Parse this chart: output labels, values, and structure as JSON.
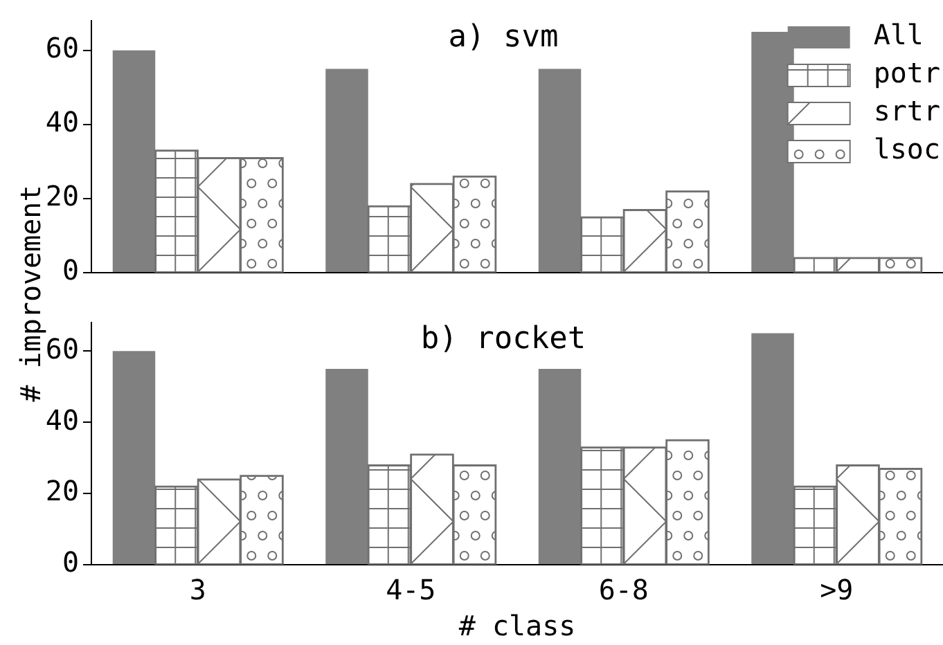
{
  "chart_data": [
    {
      "type": "bar",
      "title": "a) svm",
      "ylabel": "# improvement",
      "categories": [
        null,
        null,
        null,
        null
      ],
      "ylim": [
        0,
        68
      ],
      "yticks": [
        0,
        20,
        40,
        60
      ],
      "grid": false,
      "legend": "top right",
      "series": [
        {
          "name": "All",
          "color": "#808080",
          "values": [
            60,
            55,
            55,
            65
          ]
        },
        {
          "name": "potr",
          "color": "#ffffff",
          "values": [
            33,
            18,
            15,
            4
          ]
        },
        {
          "name": "srtr",
          "color": "#ffffff",
          "values": [
            31,
            24,
            17,
            4
          ]
        },
        {
          "name": "lsoc",
          "color": "#ffffff",
          "values": [
            31,
            26,
            22,
            4
          ]
        }
      ]
    },
    {
      "type": "bar",
      "title": "b) rocket",
      "xlabel": "# class",
      "categories": [
        "3",
        "4-5",
        "6-8",
        ">9"
      ],
      "ylim": [
        0,
        68
      ],
      "yticks": [
        0,
        20,
        40,
        60
      ],
      "grid": false,
      "legend": false,
      "series": [
        {
          "color": "#808080",
          "values": [
            60,
            55,
            55,
            65
          ]
        },
        {
          "color": "#ffffff",
          "values": [
            22,
            28,
            33,
            22
          ]
        },
        {
          "color": "#ffffff",
          "values": [
            24,
            31,
            33,
            28
          ]
        },
        {
          "color": "#ffffff",
          "values": [
            25,
            28,
            35,
            27
          ]
        }
      ]
    }
  ]
}
